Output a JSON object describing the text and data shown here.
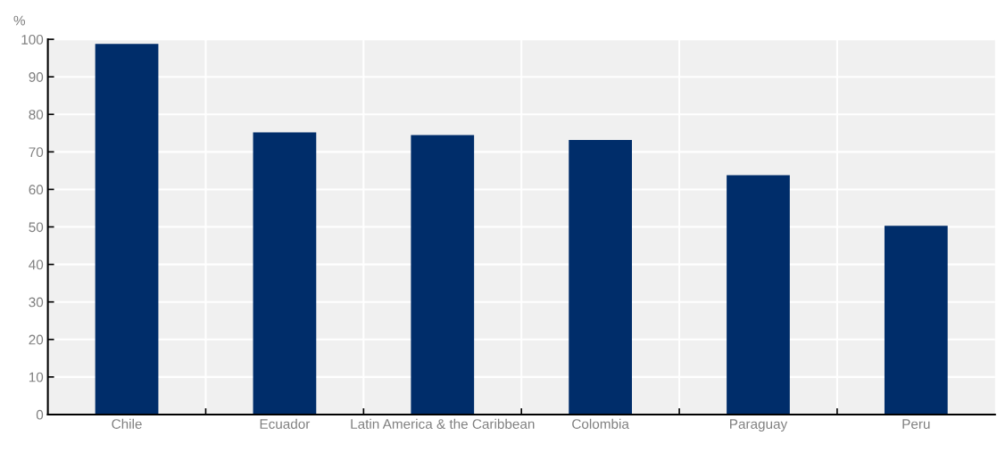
{
  "chart_data": {
    "type": "bar",
    "ylabel": "%",
    "categories": [
      "Chile",
      "Ecuador",
      "Latin America & the Caribbean",
      "Colombia",
      "Paraguay",
      "Peru"
    ],
    "values": [
      98.8,
      75.2,
      74.5,
      73.2,
      63.8,
      50.3
    ],
    "color": "#002d6a",
    "ylim": [
      0,
      100
    ],
    "yticks": [
      0,
      10,
      20,
      30,
      40,
      50,
      60,
      70,
      80,
      90,
      100
    ],
    "grid": true,
    "legend": false
  }
}
